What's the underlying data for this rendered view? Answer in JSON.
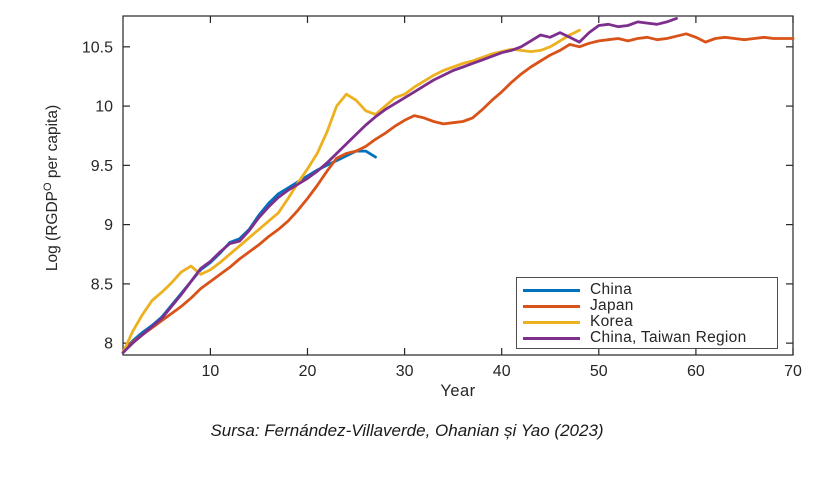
{
  "caption": {
    "text": "Sursa: Fernández-Villaverde, Ohanian și Yao (2023)"
  },
  "chart_data": {
    "type": "line",
    "title": "",
    "xlabel": "Year",
    "ylabel": "Log (RGDP^O per capita)",
    "ylabel_parts": {
      "prefix": "Log (RGDP",
      "superscript": "O",
      "suffix": " per capita)"
    },
    "xlim": [
      1,
      70
    ],
    "ylim": [
      7.9,
      10.76
    ],
    "xticks": [
      10,
      20,
      30,
      40,
      50,
      60,
      70
    ],
    "yticks": [
      8,
      8.5,
      9,
      9.5,
      10,
      10.5
    ],
    "grid": false,
    "legend_position": "inside-bottom-right",
    "axis_color": "#262626",
    "line_width": 2.8,
    "series": [
      {
        "name": "China",
        "color": "#0072BD",
        "start_year": 1,
        "values": [
          7.92,
          8.02,
          8.09,
          8.15,
          8.22,
          8.32,
          8.42,
          8.52,
          8.62,
          8.68,
          8.76,
          8.85,
          8.88,
          8.96,
          9.08,
          9.18,
          9.26,
          9.31,
          9.36,
          9.41,
          9.46,
          9.5,
          9.54,
          9.58,
          9.62,
          9.62,
          9.57
        ]
      },
      {
        "name": "Japan",
        "color": "#D95319",
        "start_year": 1,
        "values": [
          7.92,
          8.01,
          8.07,
          8.13,
          8.19,
          8.25,
          8.31,
          8.38,
          8.46,
          8.52,
          8.58,
          8.64,
          8.71,
          8.77,
          8.83,
          8.9,
          8.96,
          9.03,
          9.12,
          9.22,
          9.33,
          9.45,
          9.56,
          9.6,
          9.62,
          9.66,
          9.72,
          9.77,
          9.83,
          9.88,
          9.92,
          9.9,
          9.87,
          9.85,
          9.86,
          9.87,
          9.9,
          9.97,
          10.05,
          10.12,
          10.2,
          10.27,
          10.33,
          10.38,
          10.43,
          10.47,
          10.52,
          10.5,
          10.53,
          10.55,
          10.56,
          10.57,
          10.55,
          10.57,
          10.58,
          10.56,
          10.57,
          10.59,
          10.61,
          10.58,
          10.54,
          10.57,
          10.58,
          10.57,
          10.56,
          10.57,
          10.58,
          10.57,
          10.57,
          10.57
        ]
      },
      {
        "name": "Korea",
        "color": "#EDB120",
        "start_year": 1,
        "values": [
          7.92,
          8.1,
          8.24,
          8.36,
          8.43,
          8.51,
          8.6,
          8.65,
          8.58,
          8.62,
          8.68,
          8.75,
          8.82,
          8.89,
          8.96,
          9.03,
          9.1,
          9.22,
          9.35,
          9.47,
          9.6,
          9.78,
          10.0,
          10.1,
          10.05,
          9.96,
          9.93,
          10.0,
          10.07,
          10.1,
          10.16,
          10.21,
          10.26,
          10.3,
          10.33,
          10.36,
          10.38,
          10.41,
          10.44,
          10.46,
          10.48,
          10.47,
          10.46,
          10.47,
          10.5,
          10.55,
          10.6,
          10.64
        ]
      },
      {
        "name": "China, Taiwan Region",
        "color": "#7E2F8E",
        "start_year": 1,
        "values": [
          7.92,
          8.0,
          8.07,
          8.14,
          8.21,
          8.31,
          8.41,
          8.52,
          8.63,
          8.69,
          8.77,
          8.84,
          8.86,
          8.95,
          9.06,
          9.15,
          9.23,
          9.29,
          9.34,
          9.39,
          9.45,
          9.52,
          9.6,
          9.68,
          9.76,
          9.84,
          9.91,
          9.97,
          10.02,
          10.07,
          10.12,
          10.17,
          10.22,
          10.26,
          10.3,
          10.33,
          10.36,
          10.39,
          10.42,
          10.45,
          10.47,
          10.5,
          10.55,
          10.6,
          10.58,
          10.62,
          10.58,
          10.54,
          10.62,
          10.68,
          10.69,
          10.67,
          10.68,
          10.71,
          10.7,
          10.69,
          10.71,
          10.74
        ]
      }
    ]
  }
}
